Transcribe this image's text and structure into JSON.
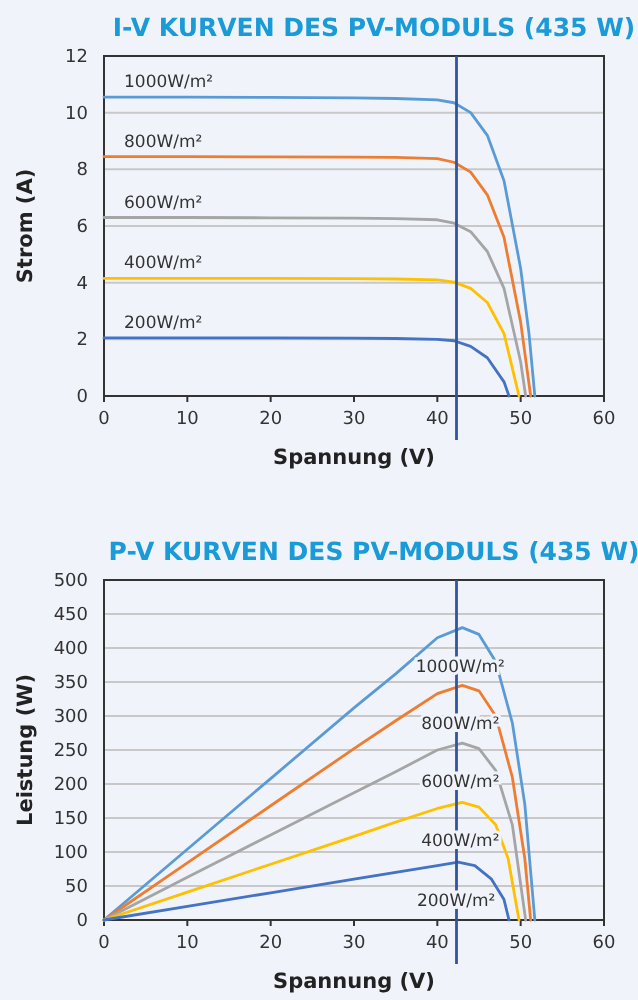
{
  "chart_data": [
    {
      "type": "line",
      "title": "I-V KURVEN DES PV-MODULS (435 W)",
      "xlabel": "Spannung (V)",
      "ylabel": "Strom (A)",
      "xlim": [
        0,
        60
      ],
      "xticks": [
        0,
        10,
        20,
        30,
        40,
        50,
        60
      ],
      "ylim": [
        0,
        12
      ],
      "yticks": [
        0,
        2,
        4,
        6,
        8,
        10,
        12
      ],
      "grid": "y",
      "marker": "none",
      "line_style": "solid",
      "ref_lines": [
        {
          "axis": "x",
          "value": 42.3,
          "color": "#2f55a4"
        }
      ],
      "series": [
        {
          "name": "1000W/m²",
          "color": "#5b9bd5",
          "x": [
            0,
            10,
            20,
            30,
            35,
            40,
            42,
            44,
            46,
            48,
            50,
            51,
            51.7
          ],
          "values": [
            10.55,
            10.55,
            10.54,
            10.52,
            10.5,
            10.45,
            10.35,
            10.0,
            9.2,
            7.6,
            4.5,
            2.2,
            0
          ]
        },
        {
          "name": "800W/m²",
          "color": "#ed7d31",
          "x": [
            0,
            10,
            20,
            30,
            35,
            40,
            42,
            44,
            46,
            48,
            50,
            51.2
          ],
          "values": [
            8.45,
            8.45,
            8.44,
            8.43,
            8.42,
            8.38,
            8.25,
            7.9,
            7.1,
            5.6,
            2.6,
            0
          ]
        },
        {
          "name": "600W/m²",
          "color": "#a5a5a5",
          "x": [
            0,
            10,
            20,
            30,
            35,
            40,
            42,
            44,
            46,
            48,
            50,
            50.6
          ],
          "values": [
            6.3,
            6.3,
            6.29,
            6.28,
            6.26,
            6.22,
            6.1,
            5.8,
            5.1,
            3.8,
            1.2,
            0
          ]
        },
        {
          "name": "400W/m²",
          "color": "#ffc000",
          "x": [
            0,
            10,
            20,
            30,
            35,
            40,
            42,
            44,
            46,
            48,
            49.8
          ],
          "values": [
            4.15,
            4.15,
            4.15,
            4.14,
            4.13,
            4.1,
            4.02,
            3.8,
            3.3,
            2.2,
            0
          ]
        },
        {
          "name": "200W/m²",
          "color": "#4472c4",
          "x": [
            0,
            10,
            20,
            30,
            35,
            40,
            42,
            44,
            46,
            48,
            48.6
          ],
          "values": [
            2.05,
            2.05,
            2.05,
            2.04,
            2.03,
            2.0,
            1.95,
            1.75,
            1.35,
            0.5,
            0
          ]
        }
      ]
    },
    {
      "type": "line",
      "title": "P-V KURVEN DES PV-MODULS (435 W)",
      "xlabel": "Spannung (V)",
      "ylabel": "Leistung (W)",
      "xlim": [
        0,
        60
      ],
      "xticks": [
        0,
        10,
        20,
        30,
        40,
        50,
        60
      ],
      "ylim": [
        0,
        500
      ],
      "yticks": [
        0,
        50,
        100,
        150,
        200,
        250,
        300,
        350,
        400,
        450,
        500
      ],
      "grid": "y",
      "marker": "none",
      "line_style": "solid",
      "ref_lines": [
        {
          "axis": "x",
          "value": 42.3,
          "color": "#2f55a4"
        }
      ],
      "series": [
        {
          "name": "1000W/m²",
          "color": "#5b9bd5",
          "x": [
            0,
            10,
            20,
            30,
            35,
            40,
            43,
            45,
            47,
            49,
            50.5,
            51.7
          ],
          "values": [
            0,
            104,
            208,
            312,
            362,
            415,
            430,
            420,
            380,
            290,
            170,
            0
          ]
        },
        {
          "name": "800W/m²",
          "color": "#ed7d31",
          "x": [
            0,
            10,
            20,
            30,
            35,
            40,
            43,
            45,
            47,
            49,
            50.5,
            51.2
          ],
          "values": [
            0,
            84,
            168,
            252,
            293,
            333,
            345,
            337,
            300,
            210,
            90,
            0
          ]
        },
        {
          "name": "600W/m²",
          "color": "#a5a5a5",
          "x": [
            0,
            10,
            20,
            30,
            35,
            40,
            43,
            45,
            47,
            49,
            50.6
          ],
          "values": [
            0,
            63,
            125,
            187,
            218,
            250,
            260,
            252,
            220,
            140,
            0
          ]
        },
        {
          "name": "400W/m²",
          "color": "#ffc000",
          "x": [
            0,
            10,
            20,
            30,
            35,
            40,
            43,
            45,
            47,
            48.5,
            49.8
          ],
          "values": [
            0,
            41,
            82,
            123,
            144,
            164,
            173,
            166,
            140,
            90,
            0
          ]
        },
        {
          "name": "200W/m²",
          "color": "#4472c4",
          "x": [
            0,
            10,
            20,
            30,
            35,
            40,
            42.5,
            44.5,
            46.5,
            48,
            48.6
          ],
          "values": [
            0,
            20,
            40,
            60,
            70,
            80,
            85,
            80,
            60,
            30,
            0
          ]
        }
      ]
    }
  ]
}
